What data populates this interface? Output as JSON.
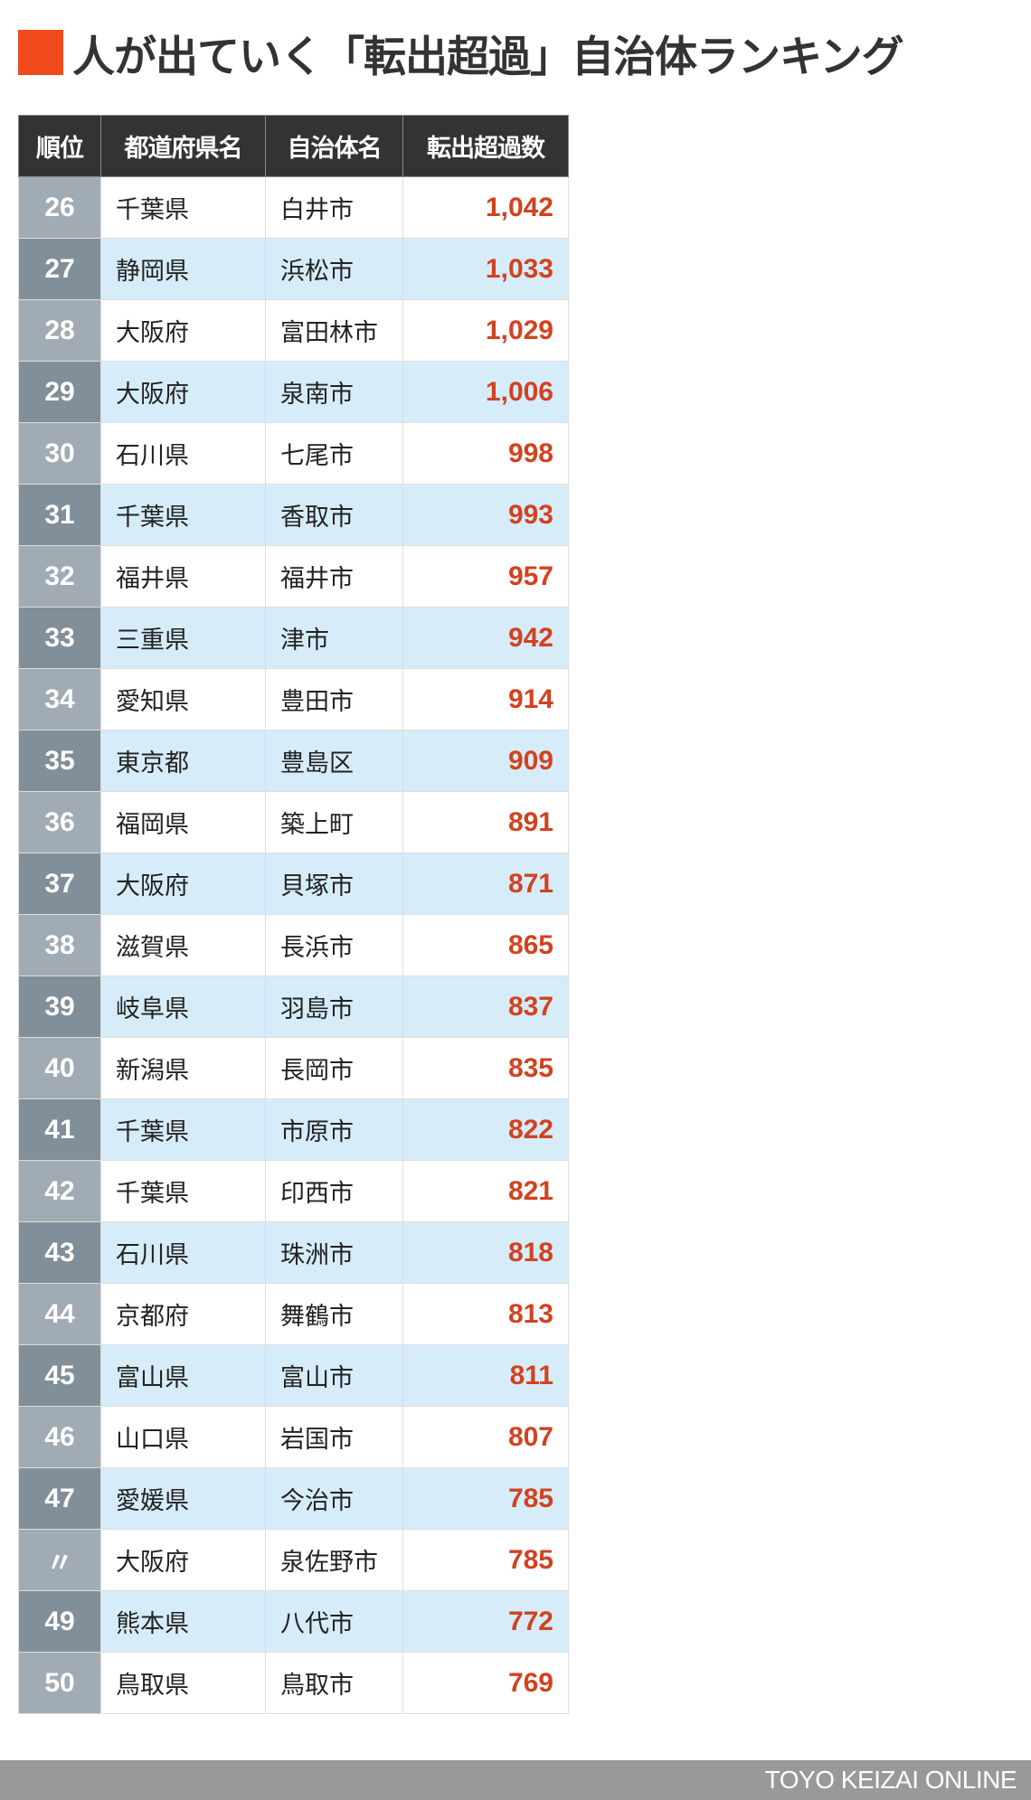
{
  "title": "人が出ていく「転出超過」自治体ランキング",
  "colors": {
    "accent": "#f04a1c",
    "header_bg": "#333333",
    "value": "#d2421f",
    "row_alt": "#d6ecf9"
  },
  "table": {
    "headers": [
      "順位",
      "都道府県名",
      "自治体名",
      "転出超過数"
    ],
    "rows": [
      [
        "26",
        "千葉県",
        "白井市",
        "1,042"
      ],
      [
        "27",
        "静岡県",
        "浜松市",
        "1,033"
      ],
      [
        "28",
        "大阪府",
        "富田林市",
        "1,029"
      ],
      [
        "29",
        "大阪府",
        "泉南市",
        "1,006"
      ],
      [
        "30",
        "石川県",
        "七尾市",
        "998"
      ],
      [
        "31",
        "千葉県",
        "香取市",
        "993"
      ],
      [
        "32",
        "福井県",
        "福井市",
        "957"
      ],
      [
        "33",
        "三重県",
        "津市",
        "942"
      ],
      [
        "34",
        "愛知県",
        "豊田市",
        "914"
      ],
      [
        "35",
        "東京都",
        "豊島区",
        "909"
      ],
      [
        "36",
        "福岡県",
        "築上町",
        "891"
      ],
      [
        "37",
        "大阪府",
        "貝塚市",
        "871"
      ],
      [
        "38",
        "滋賀県",
        "長浜市",
        "865"
      ],
      [
        "39",
        "岐阜県",
        "羽島市",
        "837"
      ],
      [
        "40",
        "新潟県",
        "長岡市",
        "835"
      ],
      [
        "41",
        "千葉県",
        "市原市",
        "822"
      ],
      [
        "42",
        "千葉県",
        "印西市",
        "821"
      ],
      [
        "43",
        "石川県",
        "珠洲市",
        "818"
      ],
      [
        "44",
        "京都府",
        "舞鶴市",
        "813"
      ],
      [
        "45",
        "富山県",
        "富山市",
        "811"
      ],
      [
        "46",
        "山口県",
        "岩国市",
        "807"
      ],
      [
        "47",
        "愛媛県",
        "今治市",
        "785"
      ],
      [
        "〃",
        "大阪府",
        "泉佐野市",
        "785"
      ],
      [
        "49",
        "熊本県",
        "八代市",
        "772"
      ],
      [
        "50",
        "鳥取県",
        "鳥取市",
        "769"
      ]
    ]
  },
  "footer": {
    "brand": "TOYO KEIZAI ONLINE"
  }
}
